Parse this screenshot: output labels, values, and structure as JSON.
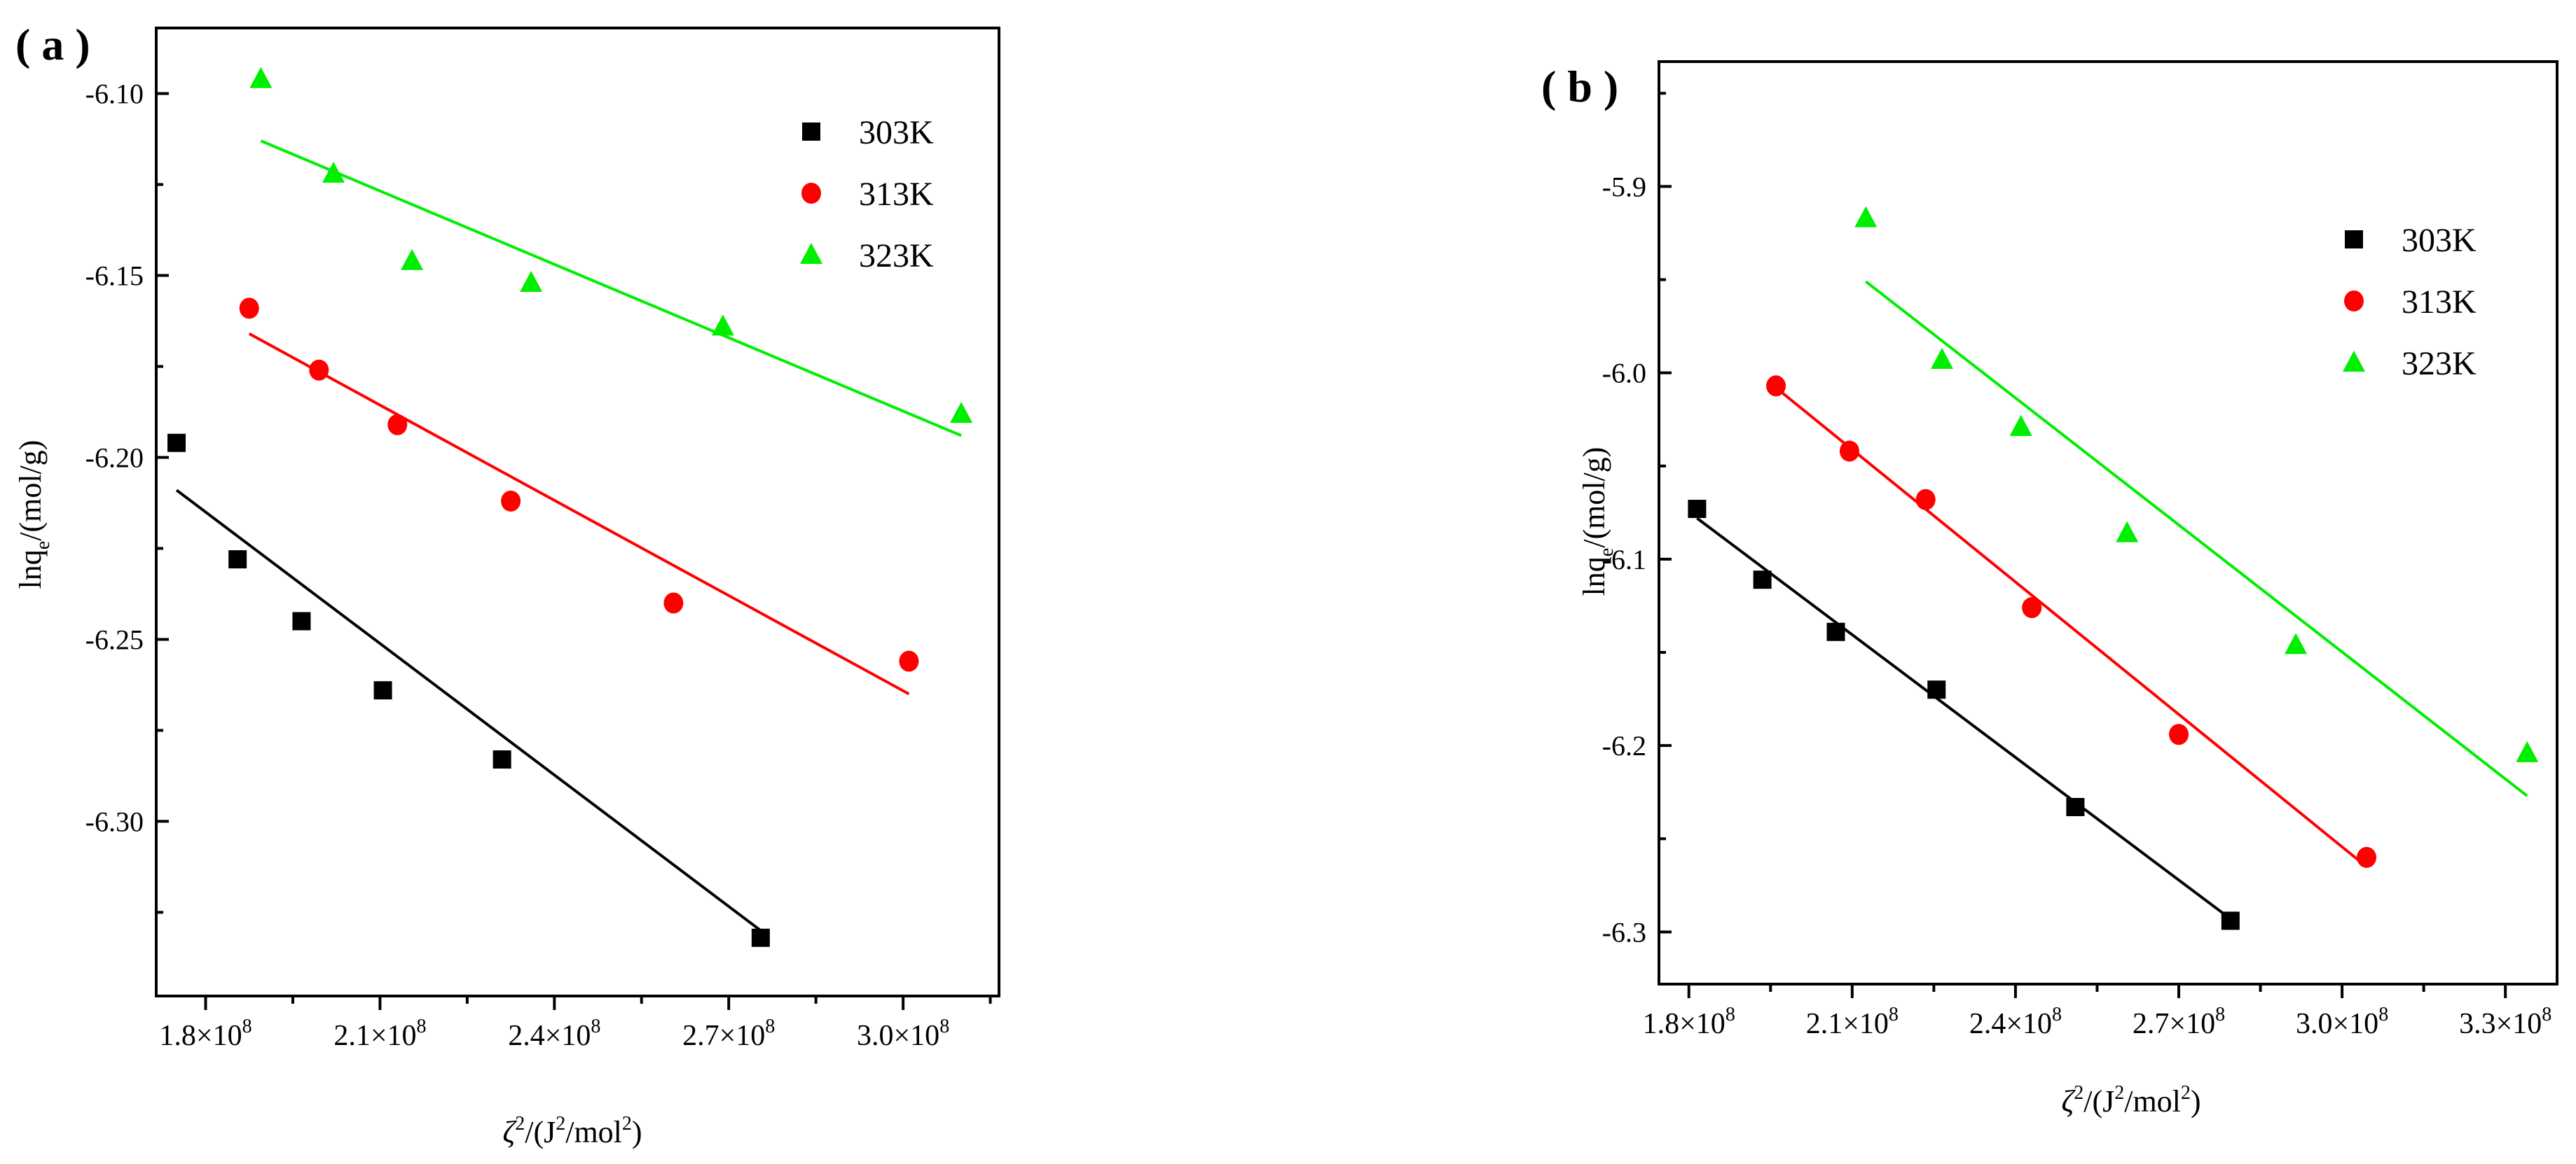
{
  "chart_data": [
    {
      "type": "scatter",
      "panel_label": "( a )",
      "title": "",
      "xlabel_base": "ζ",
      "xlabel_sup": "2",
      "xlabel_units_a": "/(J",
      "xlabel_units_sup": "2",
      "xlabel_units_b": "/mol",
      "xlabel_units_sup2": "2",
      "xlabel_units_c": ")",
      "ylabel_base": "lnq",
      "ylabel_sub": "e",
      "ylabel_rest": "/(mol/g)",
      "xlim": [
        1.715,
        3.165
      ],
      "ylim": [
        -6.348,
        -6.082
      ],
      "xticks": [
        1.8,
        2.1,
        2.4,
        2.7,
        3.0
      ],
      "xtick_labels": [
        "1.8×10",
        "2.1×10",
        "2.4×10",
        "2.7×10",
        "3.0×10"
      ],
      "xtick_exp": "8",
      "yticks": [
        -6.1,
        -6.15,
        -6.2,
        -6.25,
        -6.3
      ],
      "ytick_labels": [
        "-6.10",
        "-6.15",
        "-6.20",
        "-6.25",
        "-6.30"
      ],
      "legend_position": "top-right",
      "series": [
        {
          "name": "303K",
          "color": "#000000",
          "marker": "square",
          "x": [
            1.75,
            1.855,
            1.965,
            2.105,
            2.31,
            2.755
          ],
          "y": [
            -6.196,
            -6.228,
            -6.245,
            -6.264,
            -6.283,
            -6.332
          ],
          "fit": {
            "x": [
              1.75,
              2.755
            ],
            "y": [
              -6.209,
              -6.33
            ]
          }
        },
        {
          "name": "313K",
          "color": "#ff0000",
          "marker": "circle",
          "x": [
            1.875,
            1.995,
            2.13,
            2.325,
            2.605,
            3.01
          ],
          "y": [
            -6.159,
            -6.176,
            -6.191,
            -6.212,
            -6.24,
            -6.256
          ],
          "fit": {
            "x": [
              1.875,
              3.01
            ],
            "y": [
              -6.166,
              -6.265
            ]
          }
        },
        {
          "name": "323K",
          "color": "#00ee00",
          "marker": "triangle",
          "x": [
            1.895,
            2.02,
            2.155,
            2.36,
            2.69,
            3.1
          ],
          "y": [
            -6.096,
            -6.122,
            -6.146,
            -6.152,
            -6.164,
            -6.188
          ],
          "fit": {
            "x": [
              1.895,
              3.1
            ],
            "y": [
              -6.113,
              -6.194
            ]
          }
        }
      ]
    },
    {
      "type": "scatter",
      "panel_label": "( b )",
      "title": "",
      "xlabel_base": "ζ",
      "xlabel_sup": "2",
      "xlabel_units_a": "/(J",
      "xlabel_units_sup": "2",
      "xlabel_units_b": "/mol",
      "xlabel_units_sup2": "2",
      "xlabel_units_c": ")",
      "ylabel_base": "lnq",
      "ylabel_sub": "e",
      "ylabel_rest": "/(mol/g)",
      "xlim": [
        1.745,
        3.395
      ],
      "ylim": [
        -6.328,
        -5.833
      ],
      "xticks": [
        1.8,
        2.1,
        2.4,
        2.7,
        3.0,
        3.3
      ],
      "xtick_labels": [
        "1.8×10",
        "2.1×10",
        "2.4×10",
        "2.7×10",
        "3.0×10",
        "3.3×10"
      ],
      "xtick_exp": "8",
      "yticks": [
        -5.9,
        -6.0,
        -6.1,
        -6.2,
        -6.3
      ],
      "ytick_labels": [
        "-5.9",
        "-6.0",
        "-6.1",
        "-6.2",
        "-6.3"
      ],
      "legend_position": "top-right",
      "series": [
        {
          "name": "303K",
          "color": "#000000",
          "marker": "square",
          "x": [
            1.815,
            1.935,
            2.07,
            2.255,
            2.51,
            2.795
          ],
          "y": [
            -6.073,
            -6.111,
            -6.139,
            -6.17,
            -6.233,
            -6.294
          ],
          "fit": {
            "x": [
              1.815,
              2.795
            ],
            "y": [
              -6.078,
              -6.293
            ]
          }
        },
        {
          "name": "313K",
          "color": "#ff0000",
          "marker": "circle",
          "x": [
            1.96,
            2.095,
            2.235,
            2.43,
            2.7,
            3.045
          ],
          "y": [
            -6.007,
            -6.042,
            -6.068,
            -6.126,
            -6.194,
            -6.26
          ],
          "fit": {
            "x": [
              1.96,
              3.045
            ],
            "y": [
              -6.008,
              -6.265
            ]
          }
        },
        {
          "name": "323K",
          "color": "#00ee00",
          "marker": "triangle",
          "x": [
            2.125,
            2.265,
            2.41,
            2.605,
            2.915,
            3.34
          ],
          "y": [
            -5.917,
            -5.993,
            -6.029,
            -6.086,
            -6.146,
            -6.204
          ],
          "fit": {
            "x": [
              2.125,
              3.34
            ],
            "y": [
              -5.951,
              -6.227
            ]
          }
        }
      ]
    }
  ]
}
